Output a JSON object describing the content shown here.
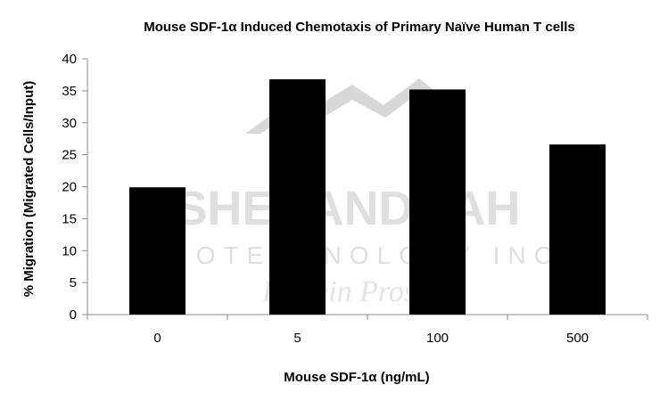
{
  "chart_data": {
    "type": "bar",
    "title": "Mouse SDF-1α Induced Chemotaxis of Primary Naïve Human T cells",
    "xlabel": "Mouse SDF-1α (ng/mL)",
    "ylabel": "% Migration (Migrated Cells/Input)",
    "categories": [
      "0",
      "5",
      "100",
      "500"
    ],
    "values": [
      19.9,
      36.8,
      35.2,
      26.6
    ],
    "ylim": [
      0,
      40
    ],
    "yticks": [
      0,
      5,
      10,
      15,
      20,
      25,
      30,
      35,
      40
    ],
    "grid": false,
    "legend": "none",
    "bar_color": "#000000",
    "axis_color": "#8c8c8c"
  },
  "watermark": {
    "line1": "SHENANDOAH",
    "line2": "BIOTECHNOLOGY INC.",
    "line3": "Protein Pros"
  }
}
